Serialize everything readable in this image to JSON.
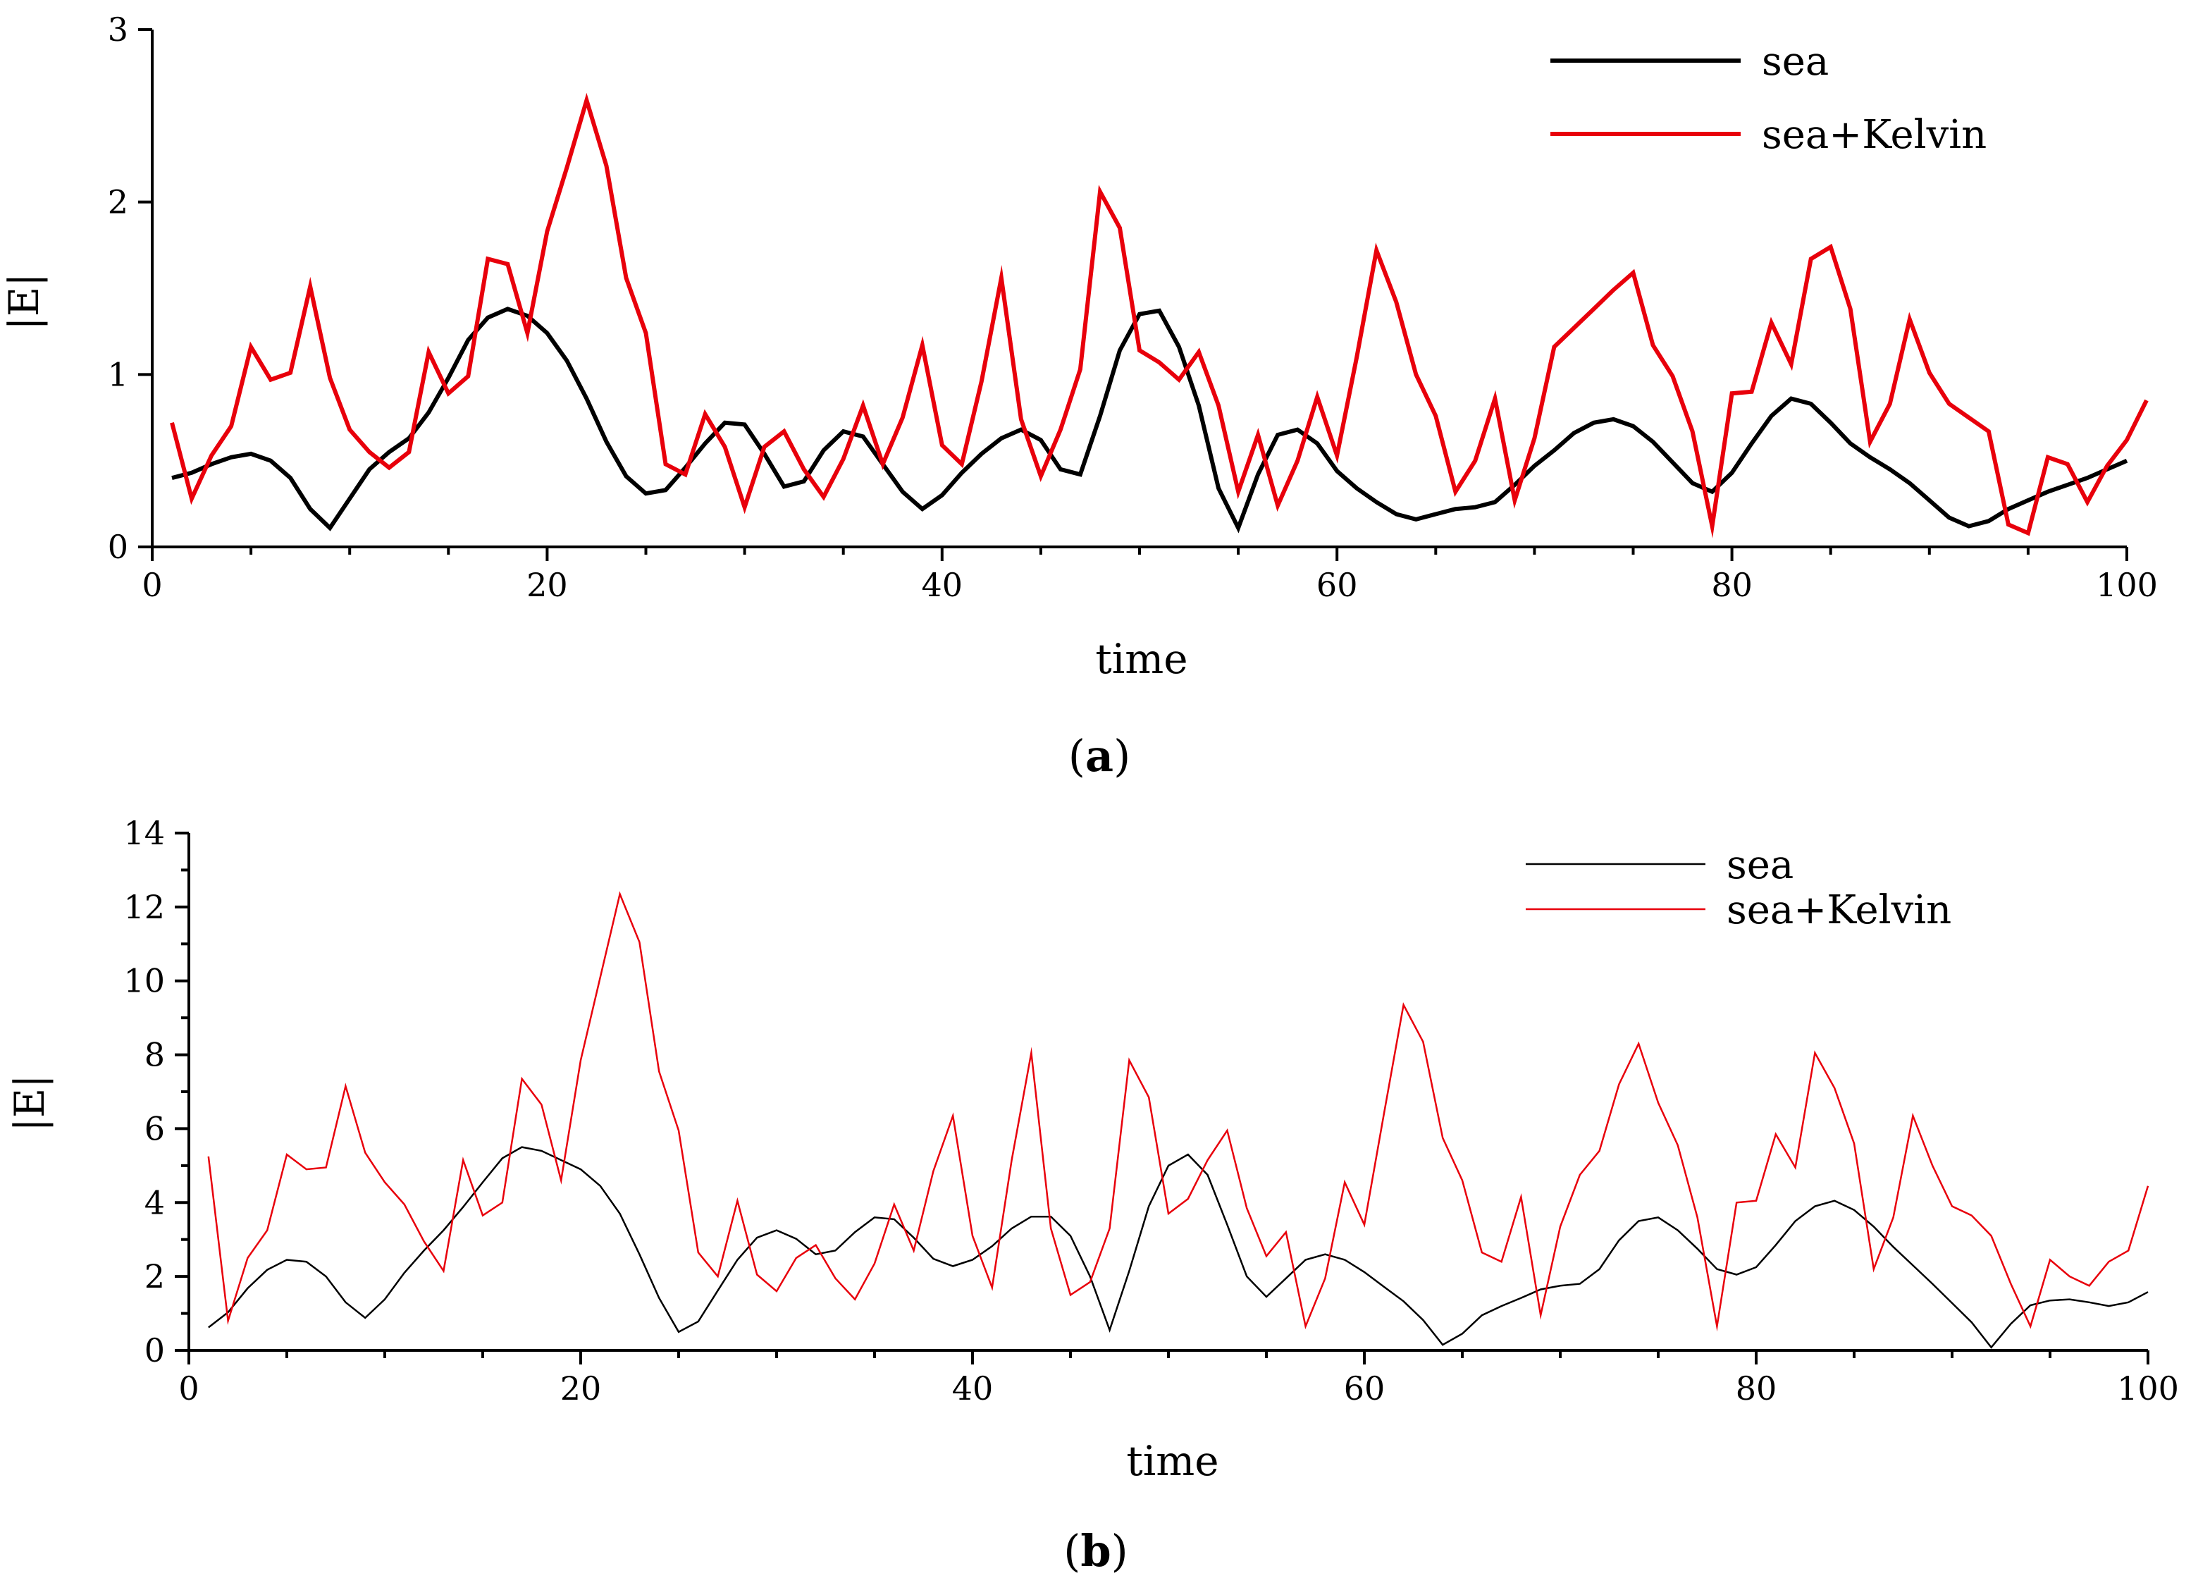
{
  "chart_data": [
    {
      "type": "line",
      "id": "a",
      "caption": "a",
      "title": "",
      "xlabel": "time",
      "ylabel": "|E|",
      "xlim": [
        0,
        100
      ],
      "ylim": [
        0,
        3
      ],
      "xticks": [
        0,
        20,
        40,
        60,
        80,
        100
      ],
      "yticks": [
        0,
        1,
        2,
        3
      ],
      "legend_position": "top-right",
      "series": [
        {
          "name": "sea",
          "color": "#000000",
          "values": [
            0.4,
            0.43,
            0.48,
            0.52,
            0.54,
            0.5,
            0.4,
            0.22,
            0.11,
            0.28,
            0.45,
            0.55,
            0.63,
            0.78,
            0.98,
            1.2,
            1.33,
            1.38,
            1.34,
            1.24,
            1.08,
            0.86,
            0.61,
            0.41,
            0.31,
            0.33,
            0.46,
            0.6,
            0.72,
            0.71,
            0.54,
            0.35,
            0.38,
            0.56,
            0.67,
            0.64,
            0.48,
            0.32,
            0.22,
            0.3,
            0.43,
            0.54,
            0.63,
            0.68,
            0.62,
            0.45,
            0.42,
            0.76,
            1.14,
            1.35,
            1.37,
            1.16,
            0.82,
            0.34,
            0.11,
            0.42,
            0.65,
            0.68,
            0.6,
            0.44,
            0.34,
            0.26,
            0.19,
            0.16,
            0.19,
            0.22,
            0.23,
            0.26,
            0.36,
            0.47,
            0.56,
            0.66,
            0.72,
            0.74,
            0.7,
            0.61,
            0.49,
            0.37,
            0.32,
            0.43,
            0.6,
            0.76,
            0.86,
            0.83,
            0.72,
            0.6,
            0.52,
            0.45,
            0.37,
            0.27,
            0.17,
            0.12,
            0.15,
            0.22,
            0.27,
            0.32,
            0.36,
            0.4,
            0.45,
            0.5
          ]
        },
        {
          "name": "sea+Kelvin",
          "color": "#e8000b",
          "values": [
            0.72,
            0.28,
            0.53,
            0.7,
            1.16,
            0.97,
            1.01,
            1.51,
            0.98,
            0.68,
            0.55,
            0.46,
            0.55,
            1.13,
            0.89,
            0.99,
            1.67,
            1.64,
            1.24,
            1.83,
            2.2,
            2.59,
            2.21,
            1.56,
            1.24,
            0.48,
            0.42,
            0.77,
            0.58,
            0.23,
            0.58,
            0.67,
            0.45,
            0.29,
            0.51,
            0.82,
            0.48,
            0.75,
            1.17,
            0.59,
            0.48,
            0.96,
            1.56,
            0.74,
            0.41,
            0.68,
            1.03,
            2.06,
            1.85,
            1.14,
            1.07,
            0.97,
            1.13,
            0.82,
            0.32,
            0.65,
            0.24,
            0.5,
            0.87,
            0.53,
            1.1,
            1.72,
            1.42,
            1.0,
            0.76,
            0.32,
            0.5,
            0.86,
            0.27,
            0.63,
            1.16,
            1.27,
            1.38,
            1.49,
            1.59,
            1.17,
            0.99,
            0.67,
            0.12,
            0.89,
            0.9,
            1.3,
            1.06,
            1.67,
            1.74,
            1.38,
            0.61,
            0.83,
            1.32,
            1.01,
            0.83,
            0.75,
            0.67,
            0.13,
            0.08,
            0.52,
            0.48,
            0.26,
            0.47,
            0.62,
            0.85
          ]
        }
      ]
    },
    {
      "type": "line",
      "id": "b",
      "caption": "b",
      "title": "",
      "xlabel": "time",
      "ylabel": "|E|",
      "xlim": [
        0,
        100
      ],
      "ylim": [
        0,
        14
      ],
      "xticks": [
        0,
        20,
        40,
        60,
        80,
        100
      ],
      "yticks": [
        0,
        2,
        4,
        6,
        8,
        10,
        12,
        14
      ],
      "legend_position": "top-right",
      "series": [
        {
          "name": "sea",
          "color": "#000000",
          "values": [
            0.62,
            1.03,
            1.68,
            2.18,
            2.45,
            2.4,
            2.0,
            1.3,
            0.88,
            1.38,
            2.1,
            2.7,
            3.25,
            3.88,
            4.55,
            5.2,
            5.5,
            5.4,
            5.15,
            4.9,
            4.45,
            3.7,
            2.6,
            1.42,
            0.5,
            0.78,
            1.62,
            2.45,
            3.05,
            3.25,
            3.02,
            2.6,
            2.7,
            3.2,
            3.6,
            3.55,
            3.05,
            2.48,
            2.28,
            2.45,
            2.82,
            3.3,
            3.62,
            3.62,
            3.1,
            2.0,
            0.55,
            2.15,
            3.9,
            5.0,
            5.3,
            4.75,
            3.4,
            2.0,
            1.45,
            1.95,
            2.45,
            2.6,
            2.45,
            2.12,
            1.72,
            1.33,
            0.82,
            0.15,
            0.45,
            0.95,
            1.2,
            1.42,
            1.65,
            1.75,
            1.8,
            2.2,
            2.98,
            3.5,
            3.6,
            3.25,
            2.75,
            2.2,
            2.05,
            2.25,
            2.85,
            3.5,
            3.9,
            4.05,
            3.8,
            3.35,
            2.8,
            2.3,
            1.8,
            1.28,
            0.76,
            0.08,
            0.72,
            1.22,
            1.35,
            1.38,
            1.3,
            1.2,
            1.3,
            1.58
          ]
        },
        {
          "name": "sea+Kelvin",
          "color": "#e8000b",
          "values": [
            5.25,
            0.8,
            2.5,
            3.25,
            5.3,
            4.9,
            4.95,
            7.15,
            5.35,
            4.55,
            3.95,
            2.95,
            2.15,
            5.15,
            3.65,
            4.0,
            7.35,
            6.65,
            4.6,
            7.85,
            10.1,
            12.35,
            11.05,
            7.55,
            5.95,
            2.65,
            2.0,
            4.05,
            2.05,
            1.6,
            2.5,
            2.85,
            1.95,
            1.38,
            2.35,
            3.95,
            2.7,
            4.85,
            6.35,
            3.1,
            1.7,
            5.15,
            8.05,
            3.3,
            1.5,
            1.85,
            3.3,
            7.85,
            6.85,
            3.7,
            4.1,
            5.15,
            5.95,
            3.85,
            2.55,
            3.2,
            0.65,
            1.95,
            4.55,
            3.4,
            6.4,
            9.35,
            8.35,
            5.75,
            4.6,
            2.65,
            2.4,
            4.15,
            0.95,
            3.35,
            4.75,
            5.4,
            7.2,
            8.3,
            6.7,
            5.55,
            3.6,
            0.65,
            4.0,
            4.05,
            5.85,
            4.95,
            8.05,
            7.1,
            5.6,
            2.2,
            3.6,
            6.35,
            5.0,
            3.9,
            3.65,
            3.1,
            1.8,
            0.65,
            2.45,
            2.0,
            1.75,
            2.4,
            2.7,
            4.45
          ]
        }
      ]
    }
  ]
}
